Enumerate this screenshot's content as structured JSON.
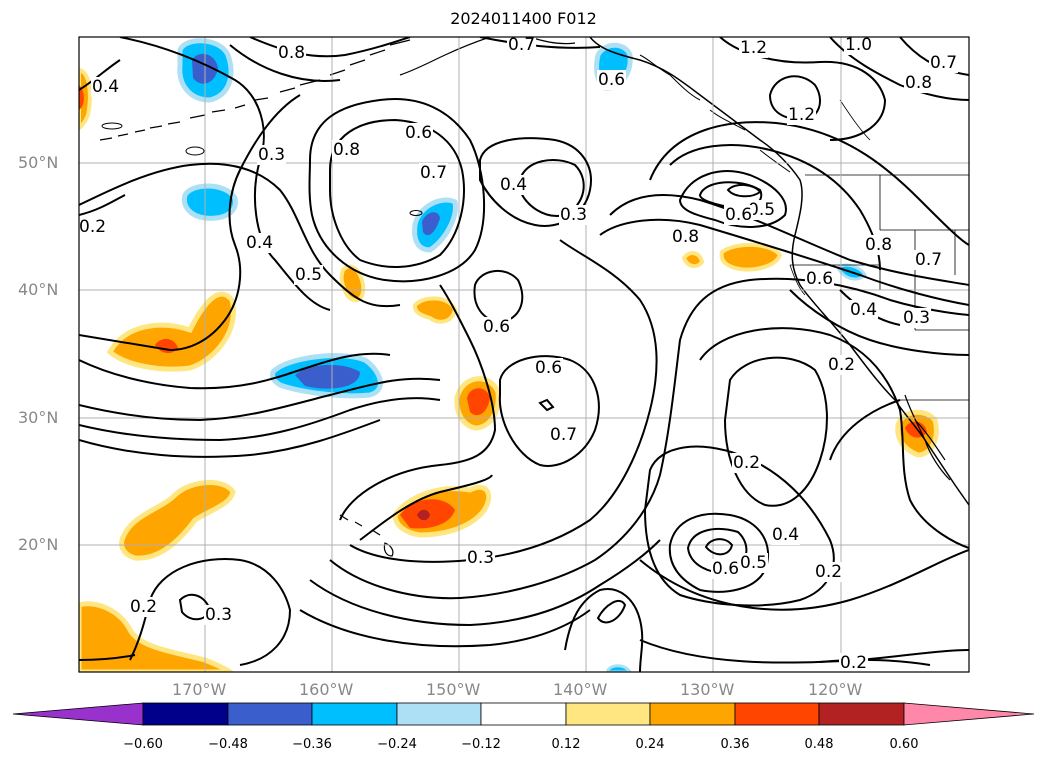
{
  "title": "2024011400 F012",
  "lat_labels": [
    "50°N",
    "40°N",
    "30°N",
    "20°N"
  ],
  "lon_labels": [
    "170°W",
    "160°W",
    "150°W",
    "140°W",
    "130°W",
    "120°W"
  ],
  "contour_labels": [
    "0.8",
    "0.7",
    "1.2",
    "1.0",
    "0.7",
    "0.8",
    "1.2",
    "0.4",
    "0.6",
    "0.8",
    "0.6",
    "0.7",
    "0.3",
    "0.4",
    "0.3",
    "0.2",
    "0.4",
    "0.5",
    "0.6",
    "0.5",
    "0.8",
    "0.6",
    "0.8",
    "0.7",
    "0.6",
    "0.4",
    "0.3",
    "0.6",
    "0.7",
    "0.2",
    "0.4",
    "0.3",
    "0.6",
    "0.5",
    "0.2",
    "0.2",
    "0.2",
    "0.3",
    "0.2"
  ],
  "colorbar": {
    "ticks": [
      "−0.60",
      "−0.48",
      "−0.36",
      "−0.24",
      "−0.12",
      "0.12",
      "0.24",
      "0.36",
      "0.48",
      "0.60"
    ],
    "colors": [
      "#9932CC",
      "#00008B",
      "#3A5FCD",
      "#00BFFF",
      "#ADE0F5",
      "#FFFFFF",
      "#FFE680",
      "#FFA500",
      "#FF4500",
      "#B22222",
      "#FF88AA"
    ]
  }
}
